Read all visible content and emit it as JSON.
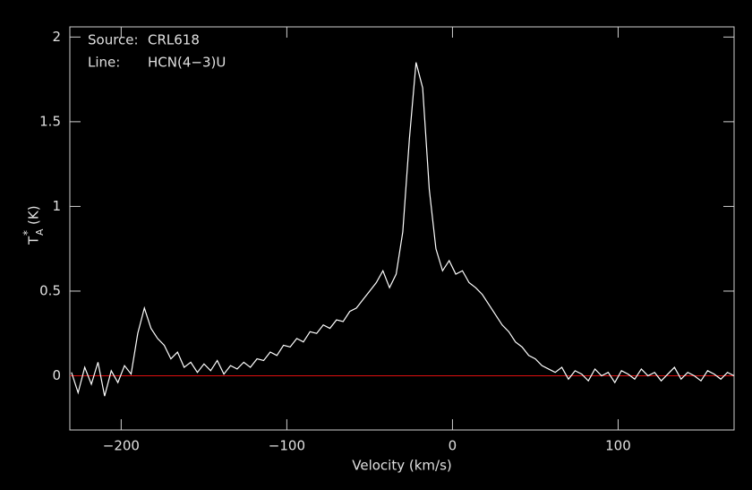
{
  "chart_data": {
    "type": "line",
    "annotations": [
      {
        "label": "Source:",
        "text": "CRL618"
      },
      {
        "label": "Line:",
        "text": "HCN(4−3)U"
      }
    ],
    "xlabel": "Velocity (km/s)",
    "ylabel": {
      "main": "T",
      "sup": "*",
      "sub": "A",
      "unit": "(K)"
    },
    "xlim": [
      -231,
      170
    ],
    "ylim": [
      -0.32,
      2.06
    ],
    "xticks": [
      {
        "value": -200,
        "label": "−200"
      },
      {
        "value": -100,
        "label": "−100"
      },
      0,
      100
    ],
    "yticks": [
      0,
      0.5,
      1,
      1.5,
      2
    ],
    "baseline": {
      "value": 0,
      "color": "#e01010"
    },
    "series": [
      {
        "color": "#ffffff",
        "x": [
          -230,
          -226,
          -222,
          -218,
          -214,
          -210,
          -206,
          -202,
          -198,
          -194,
          -190,
          -186,
          -182,
          -178,
          -174,
          -170,
          -166,
          -162,
          -158,
          -154,
          -150,
          -146,
          -142,
          -138,
          -134,
          -130,
          -126,
          -122,
          -118,
          -114,
          -110,
          -106,
          -102,
          -98,
          -94,
          -90,
          -86,
          -82,
          -78,
          -74,
          -70,
          -66,
          -62,
          -58,
          -54,
          -50,
          -46,
          -42,
          -38,
          -34,
          -30,
          -26,
          -22,
          -18,
          -14,
          -10,
          -6,
          -2,
          2,
          6,
          10,
          14,
          18,
          22,
          26,
          30,
          34,
          38,
          42,
          46,
          50,
          54,
          58,
          62,
          66,
          70,
          74,
          78,
          82,
          86,
          90,
          94,
          98,
          102,
          106,
          110,
          114,
          118,
          122,
          126,
          130,
          134,
          138,
          142,
          146,
          150,
          154,
          158,
          162,
          166,
          170
        ],
        "values": [
          0.02,
          -0.1,
          0.05,
          -0.05,
          0.08,
          -0.12,
          0.03,
          -0.04,
          0.06,
          0.01,
          0.25,
          0.4,
          0.28,
          0.22,
          0.18,
          0.1,
          0.14,
          0.05,
          0.08,
          0.02,
          0.07,
          0.03,
          0.09,
          0.01,
          0.06,
          0.04,
          0.08,
          0.05,
          0.1,
          0.09,
          0.14,
          0.12,
          0.18,
          0.17,
          0.22,
          0.2,
          0.26,
          0.25,
          0.3,
          0.28,
          0.33,
          0.32,
          0.38,
          0.4,
          0.45,
          0.5,
          0.55,
          0.62,
          0.52,
          0.6,
          0.85,
          1.4,
          1.85,
          1.7,
          1.1,
          0.75,
          0.62,
          0.68,
          0.6,
          0.62,
          0.55,
          0.52,
          0.48,
          0.42,
          0.36,
          0.3,
          0.26,
          0.2,
          0.17,
          0.12,
          0.1,
          0.06,
          0.04,
          0.02,
          0.05,
          -0.02,
          0.03,
          0.01,
          -0.03,
          0.04,
          0.0,
          0.02,
          -0.04,
          0.03,
          0.01,
          -0.02,
          0.04,
          0.0,
          0.02,
          -0.03,
          0.01,
          0.05,
          -0.02,
          0.02,
          0.0,
          -0.03,
          0.03,
          0.01,
          -0.02,
          0.02,
          0.0
        ]
      }
    ]
  }
}
